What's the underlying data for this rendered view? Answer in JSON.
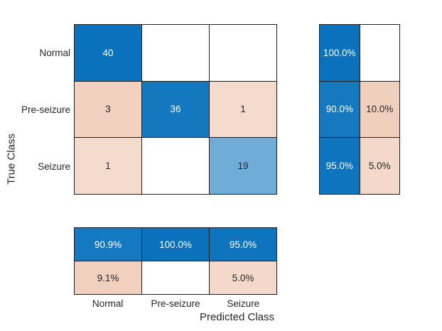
{
  "figure": {
    "background": "#ffffff",
    "gridline_color": "#1f1f1f",
    "text_color": "#262626",
    "diagonal_color": "#0a72bd",
    "offdiagonal_color": "#f2d1c1"
  },
  "chart_data": {
    "type": "heatmap",
    "subtype": "confusion-matrix",
    "title": "",
    "xlabel": "Predicted Class",
    "ylabel": "True Class",
    "classes": [
      "Normal",
      "Pre-seizure",
      "Seizure"
    ],
    "counts": [
      [
        40,
        0,
        0
      ],
      [
        3,
        36,
        1
      ],
      [
        1,
        0,
        19
      ]
    ],
    "row_summary_percent": [
      [
        100.0,
        null
      ],
      [
        90.0,
        10.0
      ],
      [
        95.0,
        5.0
      ]
    ],
    "col_summary_percent": [
      [
        90.9,
        100.0,
        95.0
      ],
      [
        9.1,
        null,
        5.0
      ]
    ],
    "main_cells": [
      {
        "text": "40",
        "bg": "#0a72bd",
        "fg": "#ffffff"
      },
      {
        "text": "",
        "bg": "#ffffff",
        "fg": "#262626"
      },
      {
        "text": "",
        "bg": "#ffffff",
        "fg": "#262626"
      },
      {
        "text": "3",
        "bg": "#f2d1c1",
        "fg": "#262626"
      },
      {
        "text": "36",
        "bg": "#1478be",
        "fg": "#ffffff"
      },
      {
        "text": "1",
        "bg": "#f5dbce",
        "fg": "#262626"
      },
      {
        "text": "1",
        "bg": "#f5dbce",
        "fg": "#262626"
      },
      {
        "text": "",
        "bg": "#ffffff",
        "fg": "#262626"
      },
      {
        "text": "19",
        "bg": "#6fadd8",
        "fg": "#262626"
      }
    ],
    "row_summary_cells": [
      {
        "text": "100.0%",
        "bg": "#0a72bd",
        "fg": "#ffffff"
      },
      {
        "text": "",
        "bg": "#ffffff",
        "fg": "#262626"
      },
      {
        "text": "90.0%",
        "bg": "#1579c0",
        "fg": "#ffffff"
      },
      {
        "text": "10.0%",
        "bg": "#f1cfbd",
        "fg": "#262626"
      },
      {
        "text": "95.0%",
        "bg": "#0e74be",
        "fg": "#ffffff"
      },
      {
        "text": "5.0%",
        "bg": "#f4d8c9",
        "fg": "#262626"
      }
    ],
    "col_summary_cells": [
      {
        "text": "90.9%",
        "bg": "#1479c0",
        "fg": "#ffffff"
      },
      {
        "text": "100.0%",
        "bg": "#0a72bd",
        "fg": "#ffffff"
      },
      {
        "text": "95.0%",
        "bg": "#0e74be",
        "fg": "#ffffff"
      },
      {
        "text": "9.1%",
        "bg": "#f1d0bf",
        "fg": "#262626"
      },
      {
        "text": "",
        "bg": "#ffffff",
        "fg": "#262626"
      },
      {
        "text": "5.0%",
        "bg": "#f4d8c9",
        "fg": "#262626"
      }
    ]
  }
}
